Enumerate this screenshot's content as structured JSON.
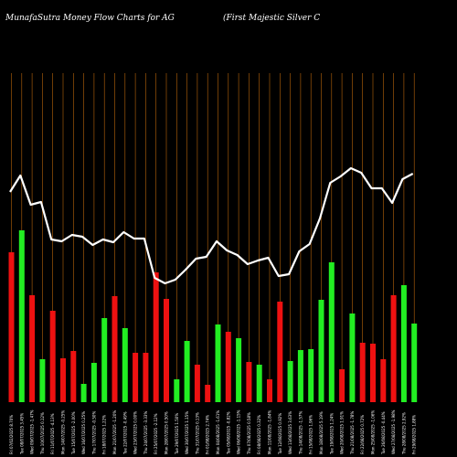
{
  "chart_data": {
    "type": "bar",
    "title_left": "MunafaSutra  Money Flow  Charts for AG",
    "title_right": "(First Majestic Silver C",
    "categories": [
      "Fri 07/02/2025",
      "Tue 08/07/2025",
      "Wed 09/07/2025",
      "Thu 10/07/2025",
      "Fri 11/07/2025",
      "Mon 14/07/2025",
      "Tue 15/07/2025",
      "Wed 16/07/2025",
      "Thu 17/07/2025",
      "Fri 18/07/2025",
      "Mon 21/07/2025",
      "Tue 22/07/2025",
      "Wed 23/07/2025",
      "Thu 24/07/2025",
      "Fri 25/07/2025",
      "Mon 28/07/2025",
      "Tue 29/07/2025",
      "Wed 30/07/2025",
      "Thu 31/07/2025",
      "Fri 01/08/2025",
      "Mon 04/08/2025",
      "Tue 05/08/2025",
      "Wed 06/08/2025",
      "Thu 07/08/2025",
      "Fri 08/08/2025",
      "Mon 11/08/2025",
      "Tue 12/08/2025",
      "Wed 13/08/2025",
      "Thu 14/08/2025",
      "Fri 15/08/2025",
      "Mon 18/08/2025",
      "Tue 19/08/2025",
      "Wed 20/08/2025",
      "Thu 21/08/2025",
      "Fri 22/08/2025",
      "Mon 25/08/2025",
      "Tue 26/08/2025",
      "Wed 27/08/2025",
      "Thu 28/08/2025",
      "Fri 29/08/2025"
    ],
    "tick_labels": [
      "Fri 07/02/2025 8.70%",
      "Tue 08/07/2025 3.45%",
      "Wed 09/07/2025 -1.47%",
      "Thu 10/07/2025 0.12%",
      "Fri 11/07/2025 -4.13%",
      "Mon 14/07/2025 -0.25%",
      "Tue 15/07/2025 -2.00%",
      "Wed 16/07/2025 0.25%",
      "Thu 17/07/2025 -0.50%",
      "Fri 18/07/2025 1.22%",
      "Mon 21/07/2025 -1.20%",
      "Tue 22/07/2025 -0.49%",
      "Wed 23/07/2025 0.00%",
      "Thu 24/07/2025 -3.33%",
      "Fri 25/07/2025 -2.12%",
      "Mon 28/07/2025 0.50%",
      "Tue 29/07/2025 1.50%",
      "Wed 30/07/2025 1.15%",
      "Thu 31/07/2025 0.13%",
      "Fri 01/08/2025 2.74%",
      "Mon 04/08/2025 -1.61%",
      "Tue 05/08/2025 -0.82%",
      "Wed 06/08/2025 -1.15%",
      "Thu 07/08/2025 0.58%",
      "Fri 08/08/2025 0.32%",
      "Mon 11/08/2025 -1.84%",
      "Tue 12/08/2025 0.92%",
      "Wed 13/08/2025 3.63%",
      "Thu 14/08/2025 -1.57%",
      "Fri 15/08/2025 1.96%",
      "Mon 18/08/2025 5.19%",
      "Tue 19/08/2025 1.24%",
      "Wed 20/08/2025 1.91%",
      "Thu 21/08/2025 -1.78%",
      "Fri 22/08/2025 0.72%",
      "Mon 25/08/2025 -1.06%",
      "Tue 26/08/2025 -0.44%",
      "Wed 27/08/2025 -1.98%",
      "Thu 28/08/2025 2.92%",
      "Fri 29/08/2025 1.88%"
    ],
    "series": [
      {
        "values": [
          164,
          188,
          117,
          47,
          100,
          48,
          56,
          20,
          43,
          92,
          116,
          81,
          54,
          54,
          142,
          113,
          25,
          67,
          41,
          19,
          85,
          77,
          70,
          44,
          41,
          25,
          110,
          45,
          57,
          58,
          112,
          153,
          36,
          97,
          65,
          64,
          47,
          117,
          128,
          86
        ],
        "colors": [
          "red",
          "green",
          "red",
          "green",
          "red",
          "red",
          "red",
          "green",
          "green",
          "green",
          "red",
          "green",
          "red",
          "red",
          "red",
          "red",
          "green",
          "green",
          "red",
          "red",
          "green",
          "red",
          "green",
          "red",
          "green",
          "red",
          "red",
          "green",
          "green",
          "green",
          "green",
          "green",
          "red",
          "green",
          "red",
          "red",
          "red",
          "red",
          "green",
          "green"
        ]
      },
      {
        "type": "line",
        "values": [
          230,
          248,
          216,
          219,
          178,
          176,
          183,
          181,
          172,
          178,
          175,
          186,
          179,
          179,
          136,
          130,
          134,
          145,
          157,
          159,
          176,
          166,
          161,
          151,
          155,
          158,
          138,
          140,
          165,
          173,
          201,
          240,
          247,
          256,
          251,
          234,
          234,
          218,
          244,
          250
        ]
      }
    ],
    "ylim": [
      0,
      360
    ],
    "grid": true,
    "colors": {
      "background": "#000000",
      "grid": "#b8650a",
      "up_bar": "#22ee22",
      "down_bar": "#ee1111",
      "line": "#ffffff",
      "text": "#ffffff"
    }
  }
}
